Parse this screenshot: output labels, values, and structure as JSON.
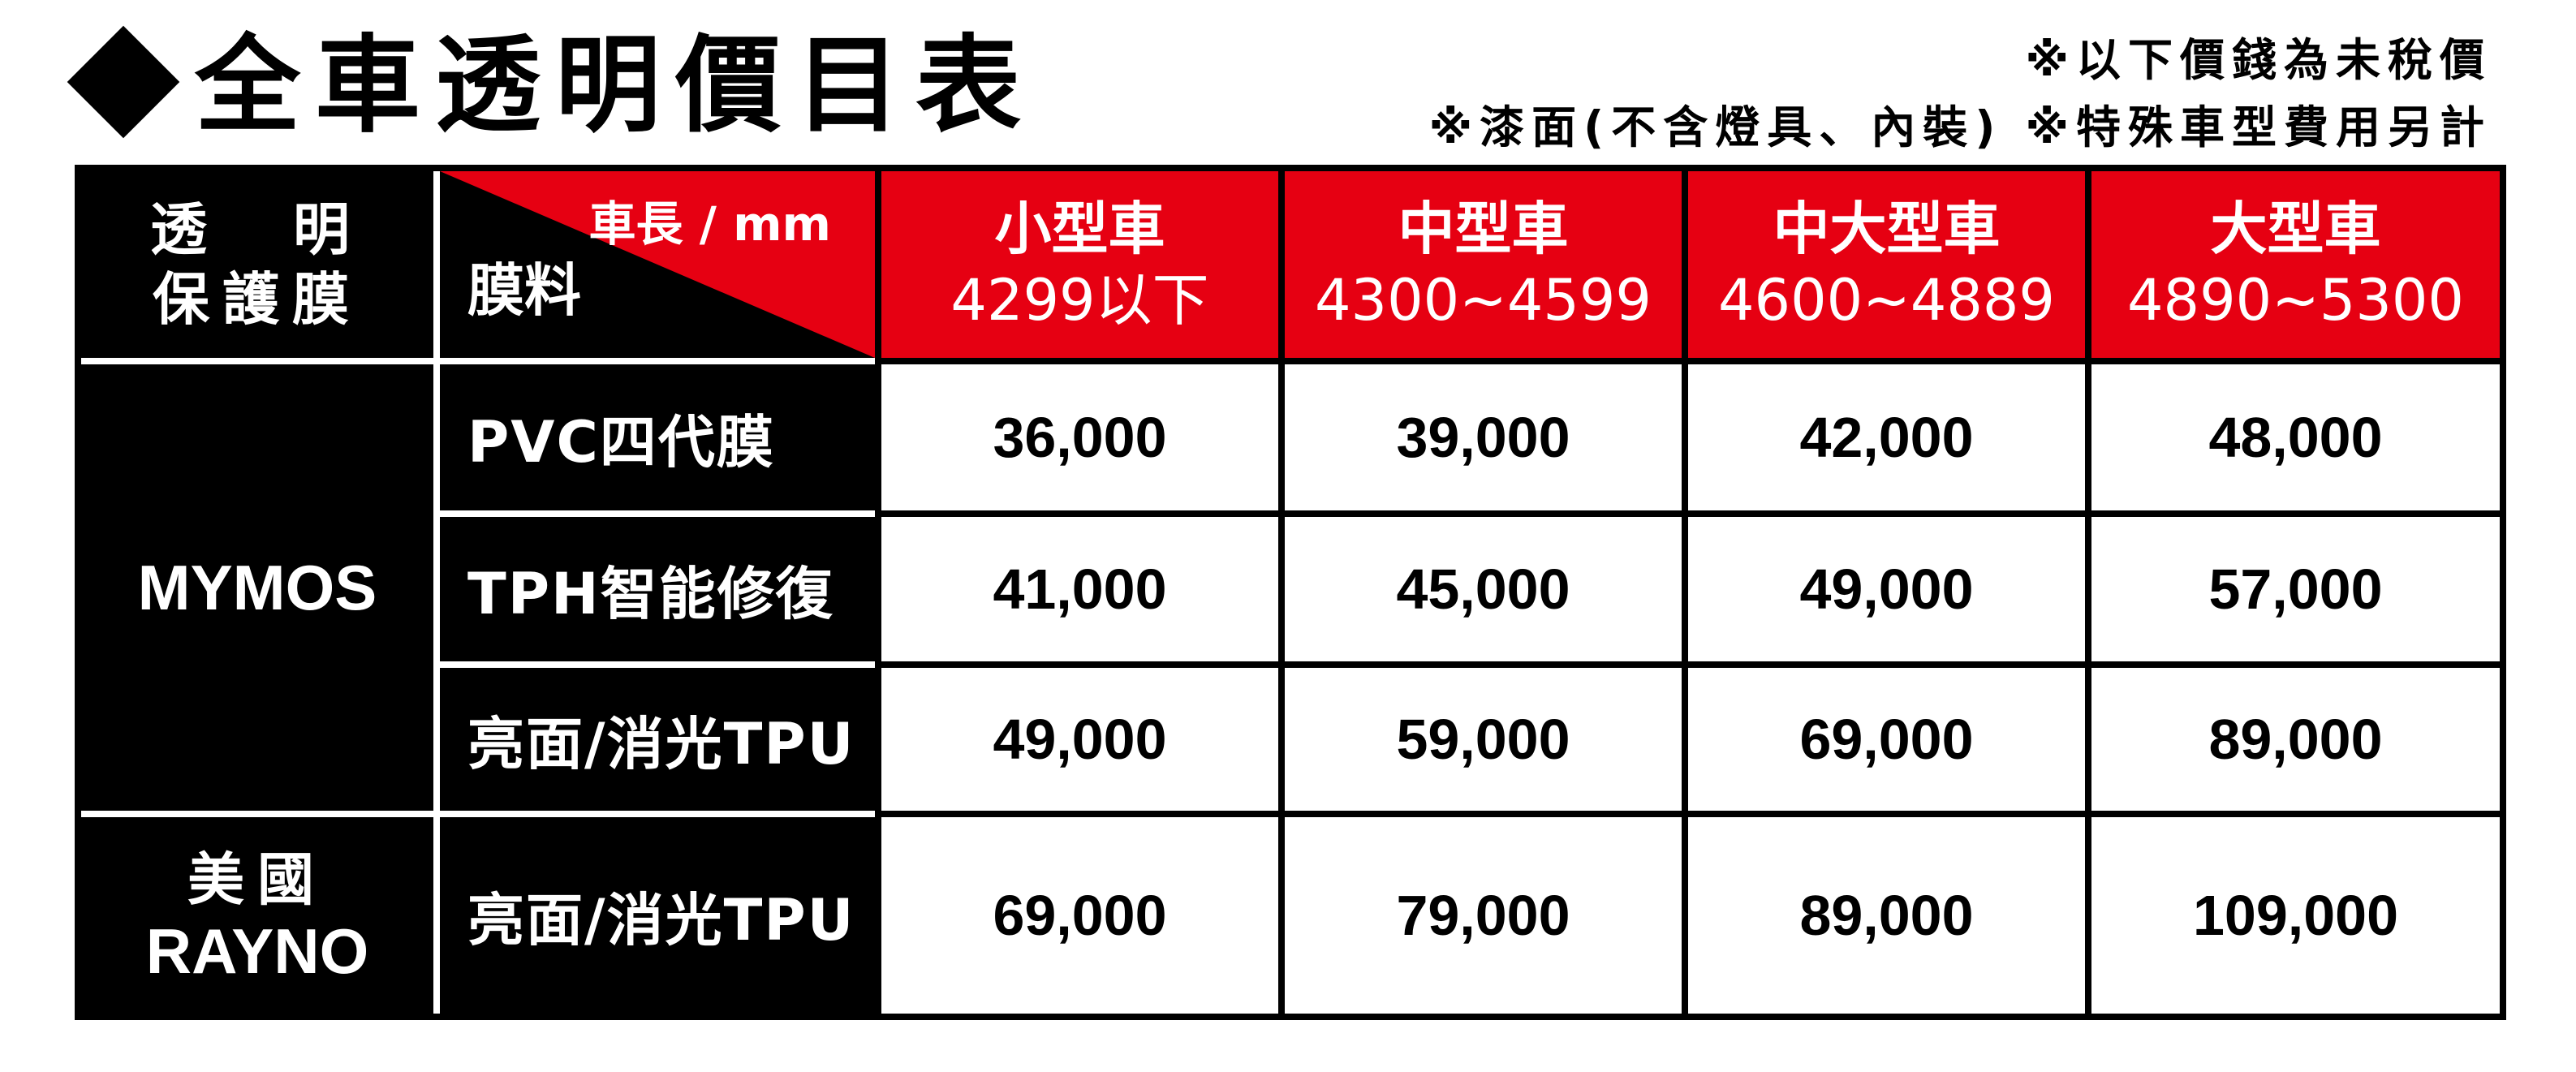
{
  "title": "全車透明價目表",
  "notes": [
    "※以下價錢為未稅價",
    "※漆面(不含燈具、內裝) ※特殊車型費用另計"
  ],
  "header": {
    "brand_label_lines": [
      "透　明",
      "保護膜"
    ],
    "corner_top": "車長 / mm",
    "corner_bottom": "膜料",
    "sizes": [
      {
        "name": "小型車",
        "range": "4299以下"
      },
      {
        "name": "中型車",
        "range": "4300~4599"
      },
      {
        "name": "中大型車",
        "range": "4600~4889"
      },
      {
        "name": "大型車",
        "range": "4890~5300"
      }
    ]
  },
  "groups": [
    {
      "brand_lines": [
        "MYMOS"
      ],
      "rows": [
        {
          "film": "PVC四代膜",
          "prices": [
            "36,000",
            "39,000",
            "42,000",
            "48,000"
          ]
        },
        {
          "film": "TPH智能修復",
          "prices": [
            "41,000",
            "45,000",
            "49,000",
            "57,000"
          ]
        },
        {
          "film": "亮面/消光TPU",
          "prices": [
            "49,000",
            "59,000",
            "69,000",
            "89,000"
          ]
        }
      ]
    },
    {
      "brand_lines": [
        "美國",
        "RAYNO"
      ],
      "rows": [
        {
          "film": "亮面/消光TPU",
          "prices": [
            "69,000",
            "79,000",
            "89,000",
            "109,000"
          ]
        }
      ]
    }
  ],
  "colors": {
    "accent_red": "#e60012",
    "black": "#000000",
    "white": "#ffffff"
  }
}
